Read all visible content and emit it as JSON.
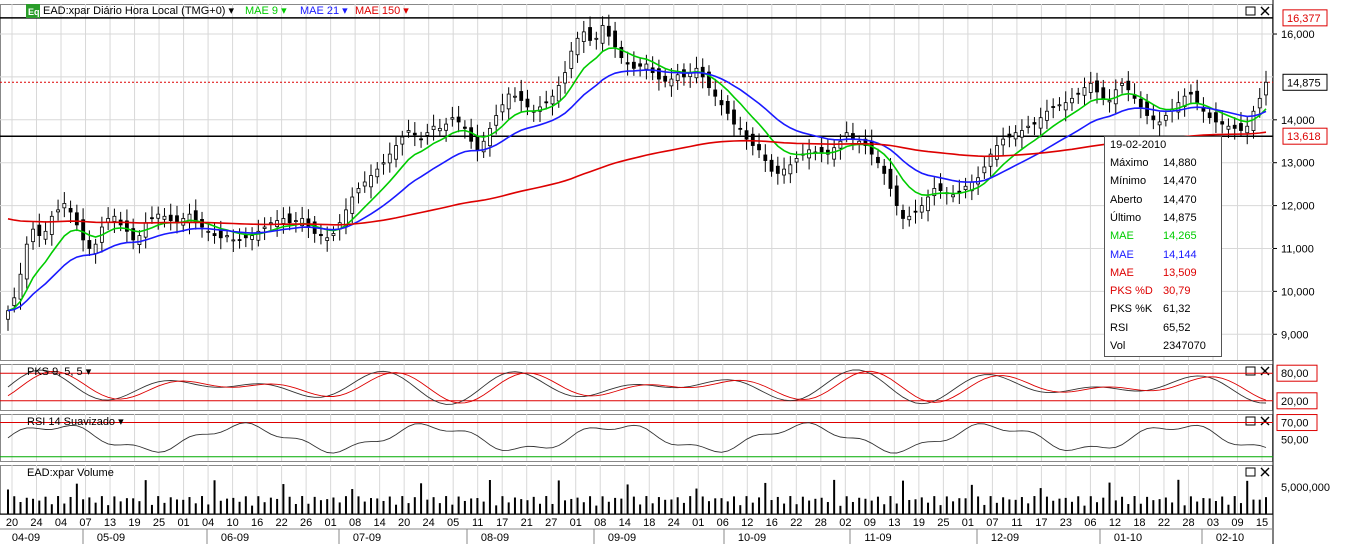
{
  "chart_data": {
    "type": "candlestick",
    "symbol_label": "EAD:xpar Diário Hora Local (TMG+0)",
    "overlays": [
      {
        "label": "MAE 9",
        "color": "#00cc00"
      },
      {
        "label": "MAE 21",
        "color": "#1a1aff"
      },
      {
        "label": "MAE 150",
        "color": "#dd0000"
      }
    ],
    "price_axis": {
      "ylim": [
        8.4,
        16.7
      ],
      "ticks": [
        "16,000",
        "14,000",
        "13,000",
        "12,000",
        "11,000",
        "10,000",
        "9,000"
      ],
      "tick_values": [
        16,
        14,
        13,
        12,
        11,
        10,
        9
      ],
      "extra_ticks": [
        {
          "value": 15,
          "label": ""
        }
      ]
    },
    "badges": [
      {
        "label": "16,377",
        "value": 16.377,
        "color": "#dd0000"
      },
      {
        "label": "14,875",
        "value": 14.875,
        "color": "#000000"
      },
      {
        "label": "13,618",
        "value": 13.618,
        "color": "#dd0000"
      }
    ],
    "horizontal_lines": [
      {
        "value": 16.377,
        "color": "#000000",
        "style": "solid"
      },
      {
        "value": 14.875,
        "color": "#dd0000",
        "style": "dotted"
      },
      {
        "value": 13.618,
        "color": "#000000",
        "style": "solid"
      }
    ],
    "x_days": [
      "20",
      "24",
      "04",
      "07",
      "13",
      "19",
      "25",
      "01",
      "04",
      "10",
      "16",
      "22",
      "26",
      "01",
      "08",
      "14",
      "20",
      "24",
      "05",
      "11",
      "17",
      "21",
      "27",
      "01",
      "08",
      "14",
      "18",
      "24",
      "01",
      "06",
      "12",
      "16",
      "22",
      "28",
      "02",
      "09",
      "13",
      "19",
      "25",
      "01",
      "07",
      "11",
      "17",
      "23",
      "06",
      "12",
      "18",
      "22",
      "28",
      "03",
      "09",
      "15"
    ],
    "x_months": [
      "04-09",
      "05-09",
      "06-09",
      "07-09",
      "08-09",
      "09-09",
      "10-09",
      "11-09",
      "12-09",
      "01-10",
      "02-10"
    ],
    "close_series": [
      9.55,
      9.85,
      10.4,
      11.1,
      11.45,
      11.3,
      11.4,
      11.75,
      11.9,
      12.05,
      11.85,
      11.55,
      11.2,
      11.0,
      11.1,
      11.5,
      11.7,
      11.75,
      11.55,
      11.4,
      11.2,
      11.3,
      11.6,
      11.7,
      11.8,
      11.75,
      11.65,
      11.6,
      11.7,
      11.8,
      11.6,
      11.5,
      11.4,
      11.3,
      11.25,
      11.3,
      11.2,
      11.2,
      11.25,
      11.3,
      11.4,
      11.5,
      11.6,
      11.65,
      11.7,
      11.6,
      11.65,
      11.7,
      11.5,
      11.35,
      11.3,
      11.25,
      11.35,
      11.6,
      11.9,
      12.2,
      12.4,
      12.55,
      12.7,
      12.85,
      13.0,
      13.2,
      13.4,
      13.6,
      13.75,
      13.65,
      13.55,
      13.7,
      13.85,
      13.8,
      13.9,
      14.05,
      13.95,
      13.8,
      13.5,
      13.3,
      13.5,
      13.8,
      14.1,
      14.35,
      14.6,
      14.55,
      14.45,
      14.3,
      14.2,
      14.3,
      14.4,
      14.55,
      14.8,
      15.1,
      15.6,
      15.9,
      16.05,
      15.85,
      15.9,
      16.2,
      15.95,
      15.7,
      15.45,
      15.3,
      15.2,
      15.25,
      15.3,
      15.1,
      14.95,
      14.9,
      14.95,
      15.05,
      15.0,
      15.1,
      15.2,
      15.0,
      14.75,
      14.55,
      14.35,
      14.15,
      13.9,
      13.8,
      13.55,
      13.4,
      13.3,
      13.05,
      12.8,
      12.75,
      12.85,
      12.95,
      13.1,
      13.2,
      13.3,
      13.25,
      13.25,
      13.2,
      13.35,
      13.5,
      13.7,
      13.55,
      13.5,
      13.4,
      13.2,
      13.0,
      12.75,
      12.4,
      12.0,
      11.7,
      11.75,
      11.85,
      12.0,
      12.2,
      12.4,
      12.35,
      12.3,
      12.25,
      12.3,
      12.45,
      12.55,
      12.65,
      12.9,
      13.2,
      13.4,
      13.55,
      13.6,
      13.7,
      13.75,
      13.85,
      13.9,
      14.05,
      14.2,
      14.3,
      14.35,
      14.4,
      14.5,
      14.6,
      14.75,
      14.85,
      14.65,
      14.5,
      14.45,
      14.7,
      14.85,
      14.7,
      14.5,
      14.3,
      14.1,
      14.0,
      13.95,
      14.1,
      14.25,
      14.4,
      14.55,
      14.6,
      14.4,
      14.2,
      14.05,
      13.95,
      13.9,
      13.85,
      13.8,
      13.75,
      13.85,
      14.2,
      14.5,
      14.875
    ],
    "ma_color": [
      "#00cc00",
      "#1a1aff",
      "#dd0000"
    ],
    "info": {
      "date": "19-02-2010",
      "rows": [
        {
          "key": "Máximo",
          "value": "14,880",
          "color": "#000000"
        },
        {
          "key": "Mínimo",
          "value": "14,470",
          "color": "#000000"
        },
        {
          "key": "Aberto",
          "value": "14,470",
          "color": "#000000"
        },
        {
          "key": "Último",
          "value": "14,875",
          "color": "#000000"
        },
        {
          "key": "MAE",
          "value": "14,265",
          "color": "#00cc00"
        },
        {
          "key": "MAE",
          "value": "14,144",
          "color": "#1a1aff"
        },
        {
          "key": "MAE",
          "value": "13,509",
          "color": "#dd0000"
        },
        {
          "key": "PKS %D",
          "value": "30,79",
          "color": "#dd0000"
        },
        {
          "key": "PKS %K",
          "value": "61,32",
          "color": "#000000"
        },
        {
          "key": "RSI",
          "value": "65,52",
          "color": "#000000"
        },
        {
          "key": "Vol",
          "value": "2347070",
          "color": "#000000"
        }
      ]
    },
    "pks_panel": {
      "label": "PKS 9, 5, 5",
      "levels": [
        {
          "label": "80,00",
          "value": 80,
          "color": "#dd0000"
        },
        {
          "label": "20,00",
          "value": 20,
          "color": "#dd0000"
        }
      ],
      "ylim": [
        0,
        100
      ]
    },
    "rsi_panel": {
      "label": "RSI 14 Suavizado",
      "ticks": [
        {
          "label": "70,00",
          "value": 70
        },
        {
          "label": "50,00",
          "value": 50
        }
      ],
      "ylim": [
        25,
        80
      ]
    },
    "volume_panel": {
      "label": "EAD:xpar Volume",
      "tick": {
        "label": "5,000,000",
        "value": 5000000
      },
      "ylim": [
        0,
        9000000
      ]
    },
    "grid": true,
    "legend": "top-left"
  }
}
